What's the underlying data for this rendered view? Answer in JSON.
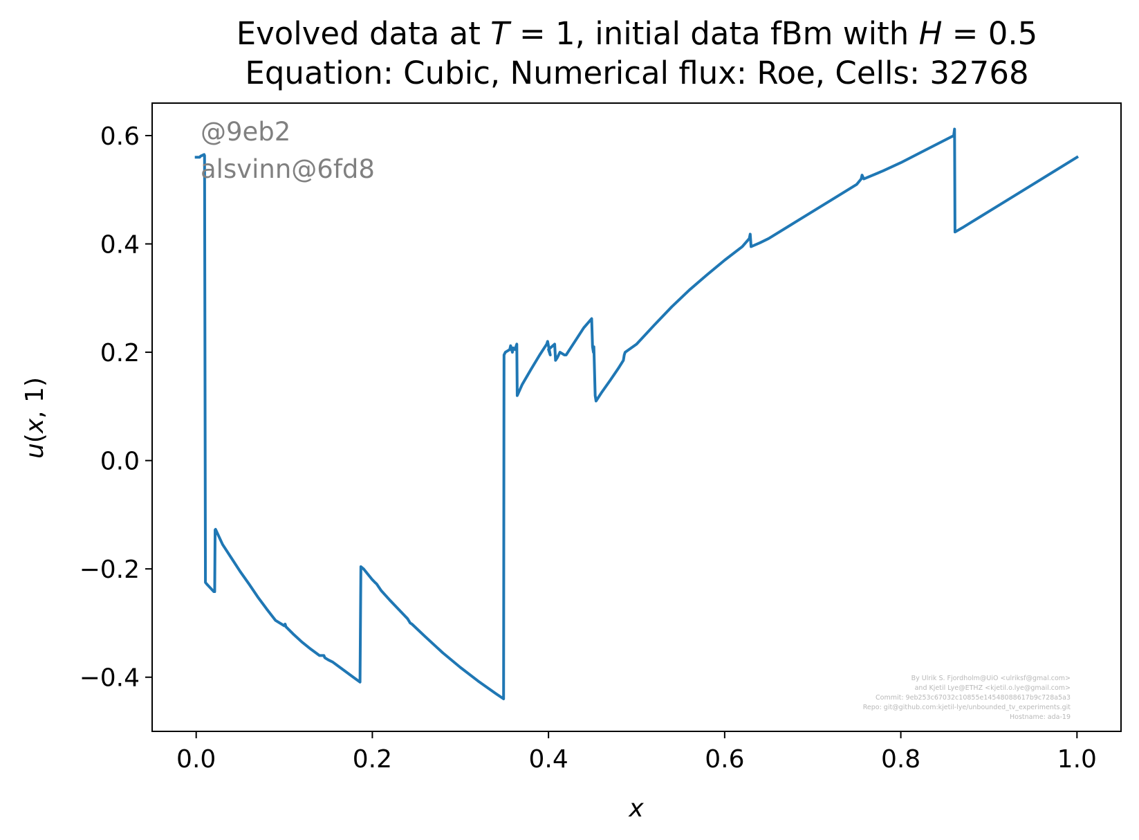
{
  "chart_data": {
    "type": "line",
    "title": {
      "line1": [
        "Evolved data at ",
        "T",
        " = 1, initial data fBm with ",
        "H",
        " = 0.5"
      ],
      "line2": "Equation: Cubic, Numerical flux: Roe, Cells: 32768"
    },
    "xlabel": "x",
    "ylabel": [
      "u",
      "(",
      "x",
      ", 1)"
    ],
    "xlim": [
      -0.05,
      1.05
    ],
    "ylim": [
      -0.5,
      0.66
    ],
    "x_ticks": [
      {
        "v": 0.0,
        "label": "0.0"
      },
      {
        "v": 0.2,
        "label": "0.2"
      },
      {
        "v": 0.4,
        "label": "0.4"
      },
      {
        "v": 0.6,
        "label": "0.6"
      },
      {
        "v": 0.8,
        "label": "0.8"
      },
      {
        "v": 1.0,
        "label": "1.0"
      }
    ],
    "y_ticks": [
      {
        "v": -0.4,
        "label": "−0.4"
      },
      {
        "v": -0.2,
        "label": "−0.2"
      },
      {
        "v": 0.0,
        "label": "0.0"
      },
      {
        "v": 0.2,
        "label": "0.2"
      },
      {
        "v": 0.4,
        "label": "0.4"
      },
      {
        "v": 0.6,
        "label": "0.6"
      }
    ],
    "grid": false,
    "line_color": "#1f77b4",
    "series": [
      {
        "x": [
          0.0,
          0.004,
          0.005,
          0.009,
          0.0095,
          0.0105,
          0.012,
          0.016,
          0.02,
          0.021,
          0.0215,
          0.022,
          0.03,
          0.04,
          0.05,
          0.06,
          0.07,
          0.08,
          0.09,
          0.1,
          0.101,
          0.102,
          0.11,
          0.12,
          0.13,
          0.14,
          0.145,
          0.146,
          0.15,
          0.155,
          0.16,
          0.17,
          0.18,
          0.186,
          0.187,
          0.19,
          0.2,
          0.203,
          0.205,
          0.21,
          0.22,
          0.23,
          0.24,
          0.243,
          0.245,
          0.26,
          0.28,
          0.3,
          0.32,
          0.34,
          0.349,
          0.3495,
          0.351,
          0.356,
          0.357,
          0.359,
          0.36,
          0.362,
          0.364,
          0.3645,
          0.37,
          0.38,
          0.39,
          0.398,
          0.399,
          0.402,
          0.4,
          0.407,
          0.408,
          0.41,
          0.413,
          0.418,
          0.42,
          0.43,
          0.44,
          0.449,
          0.45,
          0.451,
          0.4515,
          0.453,
          0.454,
          0.46,
          0.47,
          0.48,
          0.485,
          0.486,
          0.487,
          0.5,
          0.52,
          0.54,
          0.56,
          0.58,
          0.6,
          0.62,
          0.628,
          0.629,
          0.63,
          0.64,
          0.65,
          0.68,
          0.72,
          0.75,
          0.755,
          0.756,
          0.758,
          0.78,
          0.8,
          0.83,
          0.86,
          0.861,
          0.8615,
          0.87,
          0.88,
          0.89,
          0.9,
          0.95,
          1.0
        ],
        "y": [
          0.56,
          0.56,
          0.562,
          0.565,
          0.563,
          -0.225,
          -0.228,
          -0.235,
          -0.242,
          -0.242,
          -0.128,
          -0.127,
          -0.155,
          -0.18,
          -0.205,
          -0.228,
          -0.252,
          -0.274,
          -0.295,
          -0.305,
          -0.302,
          -0.307,
          -0.32,
          -0.335,
          -0.348,
          -0.36,
          -0.36,
          -0.364,
          -0.368,
          -0.372,
          -0.378,
          -0.39,
          -0.402,
          -0.409,
          -0.196,
          -0.2,
          -0.22,
          -0.225,
          -0.228,
          -0.24,
          -0.258,
          -0.275,
          -0.292,
          -0.3,
          -0.302,
          -0.325,
          -0.355,
          -0.382,
          -0.407,
          -0.43,
          -0.44,
          0.195,
          0.2,
          0.205,
          0.212,
          0.2,
          0.208,
          0.205,
          0.215,
          0.12,
          0.14,
          0.168,
          0.195,
          0.215,
          0.22,
          0.195,
          0.205,
          0.215,
          0.185,
          0.19,
          0.2,
          0.195,
          0.195,
          0.22,
          0.245,
          0.262,
          0.21,
          0.2,
          0.21,
          0.12,
          0.11,
          0.125,
          0.148,
          0.172,
          0.185,
          0.195,
          0.2,
          0.215,
          0.25,
          0.284,
          0.315,
          0.343,
          0.37,
          0.395,
          0.41,
          0.418,
          0.395,
          0.402,
          0.41,
          0.44,
          0.48,
          0.51,
          0.52,
          0.527,
          0.52,
          0.535,
          0.55,
          0.575,
          0.6,
          0.612,
          0.422,
          0.43,
          0.44,
          0.45,
          0.46,
          0.51,
          0.56
        ]
      }
    ]
  },
  "watermark": {
    "line1": "@9eb2",
    "line2": "alsvinn@6fd8"
  },
  "credits": [
    "By Ulrik S. Fjordholm@UiO <ulriksf@gmal.com>",
    "and Kjetil Lye@ETHZ <kjetil.o.lye@gmail.com>",
    "Commit: 9eb253c67032c10855e14548088617b9c728a5a3",
    "Repo: git@github.com:kjetil-lye/unbounded_tv_experiments.git",
    "Hostname: ada-19"
  ]
}
